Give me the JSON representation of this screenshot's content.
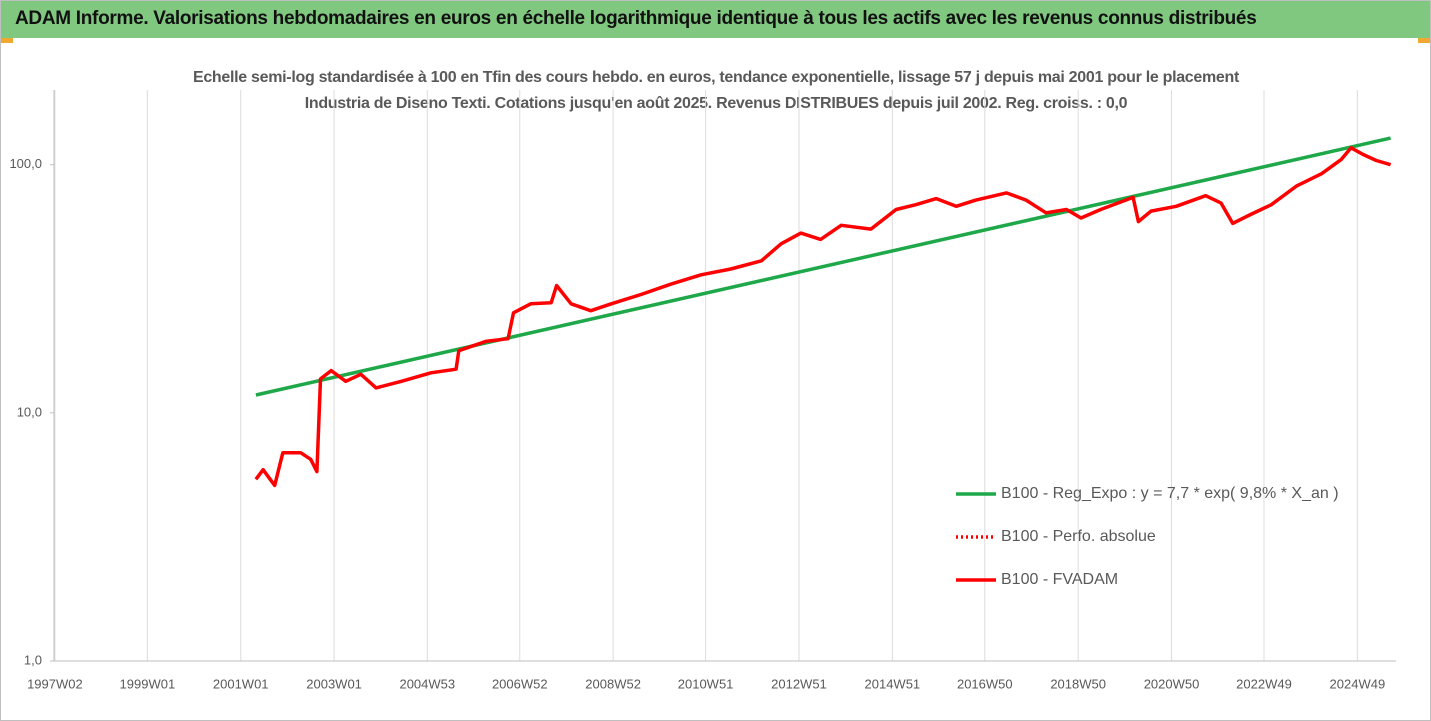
{
  "chart_data": {
    "type": "line",
    "title": "ADAM Informe. Valorisations hebdomadaires en euros en échelle logarithmique identique à tous les actifs avec les revenus connus distribués",
    "subtitle": "Echelle semi-log standardisée à 100 en Tfin des cours hebdo. en euros, tendance exponentielle, lissage 57 j depuis mai 2001 pour le placement Industria de Diseno Texti. Cotations jusqu'en août 2025. Revenus DISTRIBUES depuis juil 2002. Reg. croiss. : 0,0",
    "log_scale": true,
    "grid": "x",
    "legend": "lower right",
    "xlim": [
      "1997W01",
      "2025W40"
    ],
    "xticks": [
      "1997W02",
      "1999W01",
      "2001W01",
      "2003W01",
      "2004W53",
      "2006W52",
      "2008W52",
      "2010W51",
      "2012W51",
      "2014W51",
      "2016W50",
      "2018W50",
      "2020W50",
      "2022W49",
      "2024W49"
    ],
    "ylim": [
      1,
      200
    ],
    "yticks": [
      {
        "value": 1,
        "label": "1,0"
      },
      {
        "value": 10,
        "label": "10,0"
      },
      {
        "value": 100,
        "label": "100,0"
      }
    ],
    "series": [
      {
        "name": "B100 - Reg_Expo : y = 7,7 * exp( 9,8% *  X_an )",
        "color": "#1fa84a",
        "style": "solid",
        "x": [
          "2001W18",
          "2025W34"
        ],
        "values": [
          11.8,
          128
        ]
      },
      {
        "name": "B100 - Perfo. absolue",
        "color": "#ff0000",
        "style": "dotted",
        "x": [],
        "values": []
      },
      {
        "name": "B100 - FVADAM",
        "color": "#ff0000",
        "style": "solid",
        "x": [
          "2001W18",
          "2001W26",
          "2001W39",
          "2001W48",
          "2002W16",
          "2002W27",
          "2002W34",
          "2002W38",
          "2002W50",
          "2003W14",
          "2003W31",
          "2003W48",
          "2004W24",
          "2005W05",
          "2005W33",
          "2005W36",
          "2006W14",
          "2006W39",
          "2006W45",
          "2007W12",
          "2007W35",
          "2007W41",
          "2008W05",
          "2008W27",
          "2008W50",
          "2009W31",
          "2010W12",
          "2010W46",
          "2011W27",
          "2012W09",
          "2012W31",
          "2013W01",
          "2013W23",
          "2013W46",
          "2014W27",
          "2015W03",
          "2015W25",
          "2015W48",
          "2016W18",
          "2016W40",
          "2017W22",
          "2017W44",
          "2018W14",
          "2018W37",
          "2019W01",
          "2019W23",
          "2019W51",
          "2020W07",
          "2020W13",
          "2020W27",
          "2021W03",
          "2021W36",
          "2022W01",
          "2022W14",
          "2022W34",
          "2023W05",
          "2023W33",
          "2024W09",
          "2024W31",
          "2024W42",
          "2025W03",
          "2025W18",
          "2025W34"
        ],
        "values": [
          5.4,
          5.9,
          5.1,
          6.9,
          6.9,
          6.5,
          5.8,
          13.7,
          14.8,
          13.4,
          14.3,
          12.6,
          13.4,
          14.5,
          15.0,
          17.8,
          19.4,
          19.9,
          25.3,
          27.5,
          27.8,
          32.6,
          27.5,
          25.8,
          27.5,
          30,
          33,
          36,
          38,
          41,
          48,
          53,
          50,
          57,
          55,
          66,
          69,
          73,
          68,
          72,
          77,
          72,
          64,
          66,
          61,
          66,
          72,
          74,
          59,
          65,
          68,
          75,
          70,
          58,
          63,
          69,
          82,
          92,
          105,
          117,
          110,
          104,
          100
        ]
      }
    ]
  }
}
